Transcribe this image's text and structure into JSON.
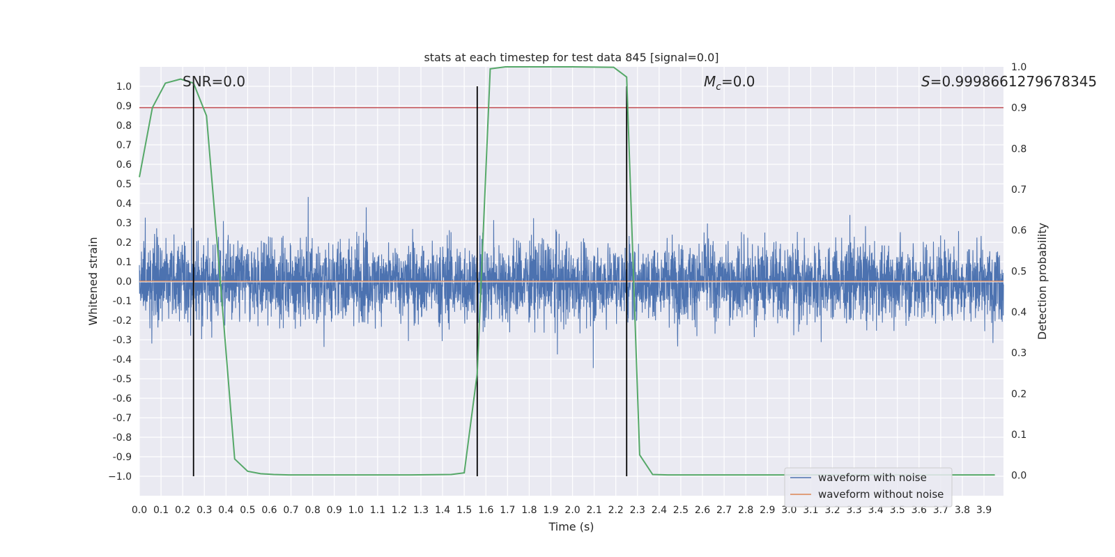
{
  "chart_data": {
    "type": "line",
    "title": "stats at each timestep for test data 845 [signal=0.0]",
    "xlabel": "Time (s)",
    "ylabel": "Whitened strain",
    "y2label": "Detection probability",
    "xlim": [
      0.0,
      3.99
    ],
    "ylim": [
      -1.1,
      1.1
    ],
    "y2lim": [
      -0.05,
      1.0
    ],
    "x_ticks": [
      "0.0",
      "0.1",
      "0.2",
      "0.3",
      "0.4",
      "0.5",
      "0.6",
      "0.7",
      "0.8",
      "0.9",
      "1.0",
      "1.1",
      "1.2",
      "1.3",
      "1.4",
      "1.5",
      "1.6",
      "1.7",
      "1.8",
      "1.9",
      "2.0",
      "2.1",
      "2.2",
      "2.3",
      "2.4",
      "2.5",
      "2.6",
      "2.7",
      "2.8",
      "2.9",
      "3.0",
      "3.1",
      "3.2",
      "3.3",
      "3.4",
      "3.5",
      "3.6",
      "3.7",
      "3.8",
      "3.9"
    ],
    "y_ticks": [
      "1.0",
      "0.9",
      "0.8",
      "0.7",
      "0.6",
      "0.5",
      "0.4",
      "0.3",
      "0.2",
      "0.1",
      "0.0",
      "-0.1",
      "-0.2",
      "-0.3",
      "-0.4",
      "-0.5",
      "-0.6",
      "-0.7",
      "-0.8",
      "-0.9",
      "−1.0"
    ],
    "y2_ticks": [
      "1.0",
      "0.9",
      "0.8",
      "0.7",
      "0.6",
      "0.5",
      "0.4",
      "0.3",
      "0.2",
      "0.1",
      "0.0"
    ],
    "grid": true,
    "legend_position": "lower-right",
    "annotations": {
      "snr": "SNR=0.0",
      "mc_symbol": "M",
      "mc_sub": "c",
      "mc_value": "=0.0",
      "s_symbol": "S",
      "s_value": "=0.9998661279678345"
    },
    "threshold_y2": 0.9,
    "vertical_lines_x": [
      0.25,
      1.56,
      2.25
    ],
    "series": [
      {
        "name": "waveform with noise",
        "color": "#4c72b0",
        "style": "noise",
        "amplitude_range": [
          -0.95,
          1.0
        ],
        "x_range": [
          0.0,
          3.99
        ]
      },
      {
        "name": "waveform without noise",
        "color": "#dd8452",
        "values_constant": 0.0
      },
      {
        "color": "#55a868",
        "axis": "y2",
        "x": [
          0.0,
          0.06,
          0.12,
          0.19,
          0.25,
          0.31,
          0.37,
          0.44,
          0.5,
          0.56,
          0.62,
          0.69,
          0.75,
          1.0,
          1.25,
          1.44,
          1.5,
          1.56,
          1.62,
          1.69,
          1.75,
          2.0,
          2.19,
          2.25,
          2.31,
          2.37,
          2.44,
          2.6,
          2.8,
          3.0,
          3.2,
          3.4,
          3.6,
          3.8,
          3.95
        ],
        "values": [
          0.73,
          0.9,
          0.96,
          0.97,
          0.96,
          0.88,
          0.5,
          0.04,
          0.01,
          0.004,
          0.002,
          0.001,
          0.001,
          0.001,
          0.001,
          0.002,
          0.006,
          0.25,
          0.995,
          1.0,
          1.0,
          1.0,
          0.999,
          0.975,
          0.05,
          0.002,
          0.001,
          0.001,
          0.001,
          0.001,
          0.001,
          0.001,
          0.001,
          0.001,
          0.001
        ]
      }
    ]
  }
}
